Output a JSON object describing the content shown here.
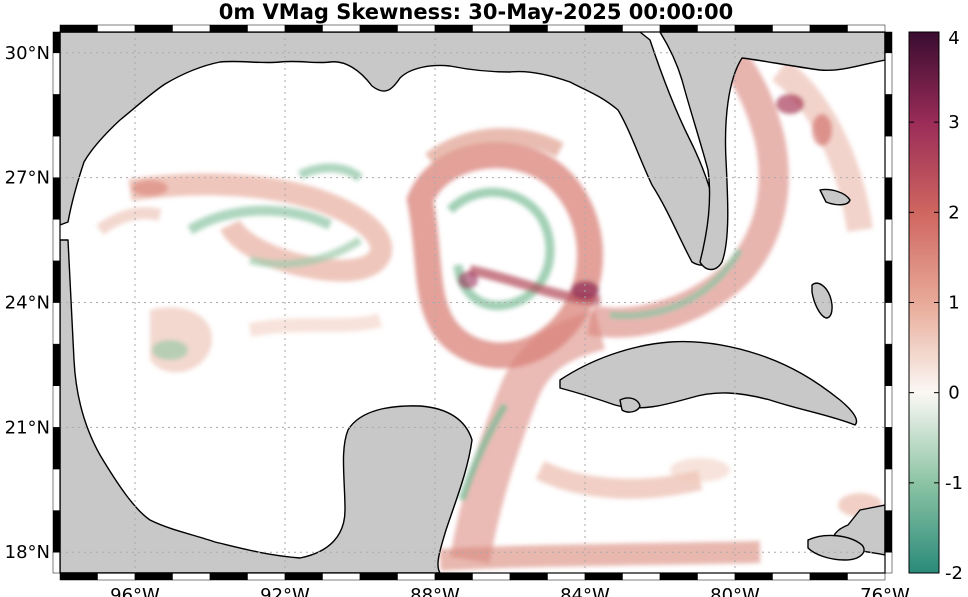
{
  "title": "0m VMag Skewness: 30-May-2025 00:00:00",
  "map": {
    "lon_range": [
      -98,
      -76
    ],
    "lat_range": [
      17.5,
      30.5
    ],
    "lon_ticks": [
      {
        "value": -96,
        "label": "96°W"
      },
      {
        "value": -92,
        "label": "92°W"
      },
      {
        "value": -88,
        "label": "88°W"
      },
      {
        "value": -84,
        "label": "84°W"
      },
      {
        "value": -80,
        "label": "80°W"
      },
      {
        "value": -76,
        "label": "76°W"
      }
    ],
    "lat_ticks": [
      {
        "value": 30,
        "label": "30°N"
      },
      {
        "value": 27,
        "label": "27°N"
      },
      {
        "value": 24,
        "label": "24°N"
      },
      {
        "value": 21,
        "label": "21°N"
      },
      {
        "value": 18,
        "label": "18°N"
      }
    ],
    "grid": "dotted",
    "land_color": "#c8c8c8",
    "ocean_color": "#ffffff"
  },
  "colorbar": {
    "min": -2,
    "max": 4,
    "ticks": [
      {
        "value": 4,
        "label": "4"
      },
      {
        "value": 3,
        "label": "3"
      },
      {
        "value": 2,
        "label": "2"
      },
      {
        "value": 1,
        "label": "1"
      },
      {
        "value": 0,
        "label": "0"
      },
      {
        "value": -1,
        "label": "-1"
      },
      {
        "value": -2,
        "label": "-2"
      }
    ],
    "stops": [
      {
        "value": -2,
        "color": "#2a8a7a"
      },
      {
        "value": -1,
        "color": "#8cc4a4"
      },
      {
        "value": 0,
        "color": "#fbf8f4"
      },
      {
        "value": 1,
        "color": "#e8aa98"
      },
      {
        "value": 2,
        "color": "#cf6660"
      },
      {
        "value": 3,
        "color": "#9a2c58"
      },
      {
        "value": 4,
        "color": "#3a0c30"
      }
    ]
  }
}
